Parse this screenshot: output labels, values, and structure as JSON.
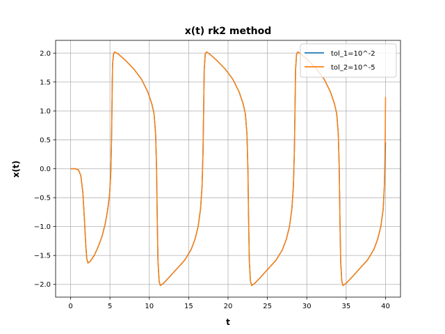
{
  "chart_data": {
    "type": "line",
    "title": "x(t) rk2 method",
    "xlabel": "t",
    "ylabel": "x(t)",
    "xlim": [
      -1.9,
      41.9
    ],
    "ylim": [
      -2.22,
      2.22
    ],
    "xticks": [
      0,
      5,
      10,
      15,
      20,
      25,
      30,
      35,
      40
    ],
    "yticks": [
      -2.0,
      -1.5,
      -1.0,
      -0.5,
      0.0,
      0.5,
      1.0,
      1.5,
      2.0
    ],
    "ytick_labels": [
      "−2.0",
      "−1.5",
      "−1.0",
      "−0.5",
      "0.0",
      "0.5",
      "1.0",
      "1.5",
      "2.0"
    ],
    "grid": true,
    "legend_position": "top-right",
    "series": [
      {
        "name": "tol_1=10^-2",
        "color": "#1f77b4",
        "points": [
          [
            0,
            0.0
          ],
          [
            0.6,
            0.0
          ],
          [
            1.0,
            -0.02
          ],
          [
            1.3,
            -0.12
          ],
          [
            1.55,
            -0.4
          ],
          [
            1.75,
            -0.85
          ],
          [
            1.92,
            -1.3
          ],
          [
            2.05,
            -1.55
          ],
          [
            2.2,
            -1.63
          ],
          [
            2.5,
            -1.6
          ],
          [
            3.0,
            -1.5
          ],
          [
            3.5,
            -1.35
          ],
          [
            4.0,
            -1.17
          ],
          [
            4.4,
            -0.95
          ],
          [
            4.7,
            -0.72
          ],
          [
            4.95,
            -0.45
          ],
          [
            5.1,
            -0.1
          ],
          [
            5.2,
            0.5
          ],
          [
            5.27,
            1.2
          ],
          [
            5.33,
            1.8
          ],
          [
            5.45,
            1.98
          ],
          [
            5.6,
            2.02
          ],
          [
            6.0,
            1.99
          ],
          [
            7.0,
            1.87
          ],
          [
            8.0,
            1.73
          ],
          [
            9.0,
            1.55
          ],
          [
            9.8,
            1.33
          ],
          [
            10.3,
            1.13
          ],
          [
            10.6,
            0.95
          ],
          [
            10.8,
            0.6
          ],
          [
            10.92,
            0.0
          ],
          [
            11.0,
            -0.8
          ],
          [
            11.1,
            -1.6
          ],
          [
            11.25,
            -1.95
          ],
          [
            11.4,
            -2.02
          ],
          [
            11.8,
            -1.98
          ],
          [
            12.5,
            -1.88
          ],
          [
            13.5,
            -1.73
          ],
          [
            14.5,
            -1.58
          ],
          [
            15.3,
            -1.4
          ],
          [
            15.8,
            -1.22
          ],
          [
            16.2,
            -1.0
          ],
          [
            16.5,
            -0.7
          ],
          [
            16.7,
            -0.3
          ],
          [
            16.82,
            0.3
          ],
          [
            16.9,
            1.0
          ],
          [
            16.97,
            1.7
          ],
          [
            17.1,
            1.98
          ],
          [
            17.25,
            2.02
          ],
          [
            17.6,
            1.99
          ],
          [
            18.6,
            1.87
          ],
          [
            19.6,
            1.73
          ],
          [
            20.6,
            1.55
          ],
          [
            21.4,
            1.33
          ],
          [
            21.9,
            1.13
          ],
          [
            22.2,
            0.95
          ],
          [
            22.4,
            0.6
          ],
          [
            22.52,
            0.0
          ],
          [
            22.6,
            -0.8
          ],
          [
            22.7,
            -1.6
          ],
          [
            22.85,
            -1.95
          ],
          [
            23.0,
            -2.02
          ],
          [
            23.4,
            -1.98
          ],
          [
            24.1,
            -1.88
          ],
          [
            25.1,
            -1.73
          ],
          [
            26.1,
            -1.58
          ],
          [
            26.9,
            -1.4
          ],
          [
            27.4,
            -1.22
          ],
          [
            27.8,
            -1.0
          ],
          [
            28.1,
            -0.7
          ],
          [
            28.3,
            -0.3
          ],
          [
            28.42,
            0.3
          ],
          [
            28.5,
            1.0
          ],
          [
            28.57,
            1.7
          ],
          [
            28.7,
            1.98
          ],
          [
            28.85,
            2.02
          ],
          [
            29.2,
            1.99
          ],
          [
            30.2,
            1.87
          ],
          [
            31.2,
            1.73
          ],
          [
            32.2,
            1.55
          ],
          [
            33.0,
            1.33
          ],
          [
            33.5,
            1.13
          ],
          [
            33.8,
            0.95
          ],
          [
            34.0,
            0.6
          ],
          [
            34.12,
            0.0
          ],
          [
            34.2,
            -0.8
          ],
          [
            34.3,
            -1.6
          ],
          [
            34.45,
            -1.95
          ],
          [
            34.6,
            -2.02
          ],
          [
            35.0,
            -1.98
          ],
          [
            35.7,
            -1.88
          ],
          [
            36.7,
            -1.73
          ],
          [
            37.7,
            -1.58
          ],
          [
            38.5,
            -1.4
          ],
          [
            39.0,
            -1.22
          ],
          [
            39.4,
            -1.0
          ],
          [
            39.7,
            -0.7
          ],
          [
            39.85,
            -0.3
          ],
          [
            39.95,
            0.2
          ],
          [
            40.0,
            0.45
          ]
        ]
      },
      {
        "name": "tol_2=10^-5",
        "color": "#ff7f0e",
        "points": [
          [
            0,
            0.0
          ],
          [
            0.6,
            0.0
          ],
          [
            1.0,
            -0.02
          ],
          [
            1.3,
            -0.12
          ],
          [
            1.55,
            -0.4
          ],
          [
            1.75,
            -0.85
          ],
          [
            1.92,
            -1.3
          ],
          [
            2.05,
            -1.55
          ],
          [
            2.2,
            -1.63
          ],
          [
            2.5,
            -1.6
          ],
          [
            3.0,
            -1.5
          ],
          [
            3.5,
            -1.35
          ],
          [
            4.0,
            -1.17
          ],
          [
            4.4,
            -0.95
          ],
          [
            4.7,
            -0.72
          ],
          [
            4.95,
            -0.45
          ],
          [
            5.1,
            -0.1
          ],
          [
            5.2,
            0.5
          ],
          [
            5.27,
            1.2
          ],
          [
            5.33,
            1.8
          ],
          [
            5.45,
            1.98
          ],
          [
            5.6,
            2.02
          ],
          [
            6.0,
            1.99
          ],
          [
            7.0,
            1.87
          ],
          [
            8.0,
            1.73
          ],
          [
            9.0,
            1.55
          ],
          [
            9.8,
            1.33
          ],
          [
            10.3,
            1.13
          ],
          [
            10.6,
            0.95
          ],
          [
            10.8,
            0.6
          ],
          [
            10.92,
            0.0
          ],
          [
            11.0,
            -0.8
          ],
          [
            11.1,
            -1.6
          ],
          [
            11.25,
            -1.95
          ],
          [
            11.4,
            -2.02
          ],
          [
            11.8,
            -1.98
          ],
          [
            12.5,
            -1.88
          ],
          [
            13.5,
            -1.73
          ],
          [
            14.5,
            -1.58
          ],
          [
            15.3,
            -1.4
          ],
          [
            15.8,
            -1.22
          ],
          [
            16.2,
            -1.0
          ],
          [
            16.5,
            -0.7
          ],
          [
            16.7,
            -0.3
          ],
          [
            16.82,
            0.3
          ],
          [
            16.9,
            1.0
          ],
          [
            16.97,
            1.7
          ],
          [
            17.1,
            1.98
          ],
          [
            17.25,
            2.02
          ],
          [
            17.6,
            1.99
          ],
          [
            18.6,
            1.87
          ],
          [
            19.6,
            1.73
          ],
          [
            20.6,
            1.55
          ],
          [
            21.4,
            1.33
          ],
          [
            21.9,
            1.13
          ],
          [
            22.2,
            0.95
          ],
          [
            22.4,
            0.6
          ],
          [
            22.52,
            0.0
          ],
          [
            22.6,
            -0.8
          ],
          [
            22.7,
            -1.6
          ],
          [
            22.85,
            -1.95
          ],
          [
            23.0,
            -2.02
          ],
          [
            23.4,
            -1.98
          ],
          [
            24.1,
            -1.88
          ],
          [
            25.1,
            -1.73
          ],
          [
            26.1,
            -1.58
          ],
          [
            26.9,
            -1.4
          ],
          [
            27.4,
            -1.22
          ],
          [
            27.8,
            -1.0
          ],
          [
            28.1,
            -0.7
          ],
          [
            28.3,
            -0.3
          ],
          [
            28.42,
            0.3
          ],
          [
            28.5,
            1.0
          ],
          [
            28.57,
            1.7
          ],
          [
            28.7,
            1.98
          ],
          [
            28.85,
            2.02
          ],
          [
            29.2,
            1.99
          ],
          [
            30.2,
            1.87
          ],
          [
            31.2,
            1.73
          ],
          [
            32.2,
            1.55
          ],
          [
            33.0,
            1.33
          ],
          [
            33.5,
            1.13
          ],
          [
            33.8,
            0.95
          ],
          [
            34.0,
            0.6
          ],
          [
            34.12,
            0.0
          ],
          [
            34.2,
            -0.8
          ],
          [
            34.3,
            -1.6
          ],
          [
            34.45,
            -1.95
          ],
          [
            34.6,
            -2.02
          ],
          [
            35.0,
            -1.98
          ],
          [
            35.7,
            -1.88
          ],
          [
            36.7,
            -1.73
          ],
          [
            37.7,
            -1.58
          ],
          [
            38.5,
            -1.4
          ],
          [
            39.0,
            -1.22
          ],
          [
            39.4,
            -1.0
          ],
          [
            39.7,
            -0.7
          ],
          [
            39.85,
            -0.3
          ],
          [
            39.92,
            0.2
          ],
          [
            39.97,
            0.7
          ],
          [
            40.0,
            1.24
          ]
        ]
      }
    ]
  }
}
